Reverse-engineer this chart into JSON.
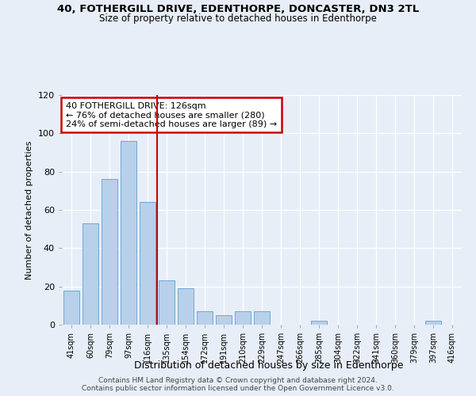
{
  "title1": "40, FOTHERGILL DRIVE, EDENTHORPE, DONCASTER, DN3 2TL",
  "title2": "Size of property relative to detached houses in Edenthorpe",
  "xlabel": "Distribution of detached houses by size in Edenthorpe",
  "ylabel": "Number of detached properties",
  "categories": [
    "41sqm",
    "60sqm",
    "79sqm",
    "97sqm",
    "116sqm",
    "135sqm",
    "154sqm",
    "172sqm",
    "191sqm",
    "210sqm",
    "229sqm",
    "247sqm",
    "266sqm",
    "285sqm",
    "304sqm",
    "322sqm",
    "341sqm",
    "360sqm",
    "379sqm",
    "397sqm",
    "416sqm"
  ],
  "values": [
    18,
    53,
    76,
    96,
    64,
    23,
    19,
    7,
    5,
    7,
    7,
    0,
    0,
    2,
    0,
    0,
    0,
    0,
    0,
    2,
    0
  ],
  "bar_color": "#b8d0ea",
  "bar_edge_color": "#6aaad4",
  "vline_color": "#cc0000",
  "annotation_line1": "40 FOTHERGILL DRIVE: 126sqm",
  "annotation_line2": "← 76% of detached houses are smaller (280)",
  "annotation_line3": "24% of semi-detached houses are larger (89) →",
  "annotation_box_color": "#cc0000",
  "annotation_bg": "#ffffff",
  "ylim": [
    0,
    120
  ],
  "yticks": [
    0,
    20,
    40,
    60,
    80,
    100,
    120
  ],
  "footer1": "Contains HM Land Registry data © Crown copyright and database right 2024.",
  "footer2": "Contains public sector information licensed under the Open Government Licence v3.0.",
  "bg_color": "#e8eef8",
  "plot_bg": "#e8eef8",
  "grid_color": "#ffffff"
}
